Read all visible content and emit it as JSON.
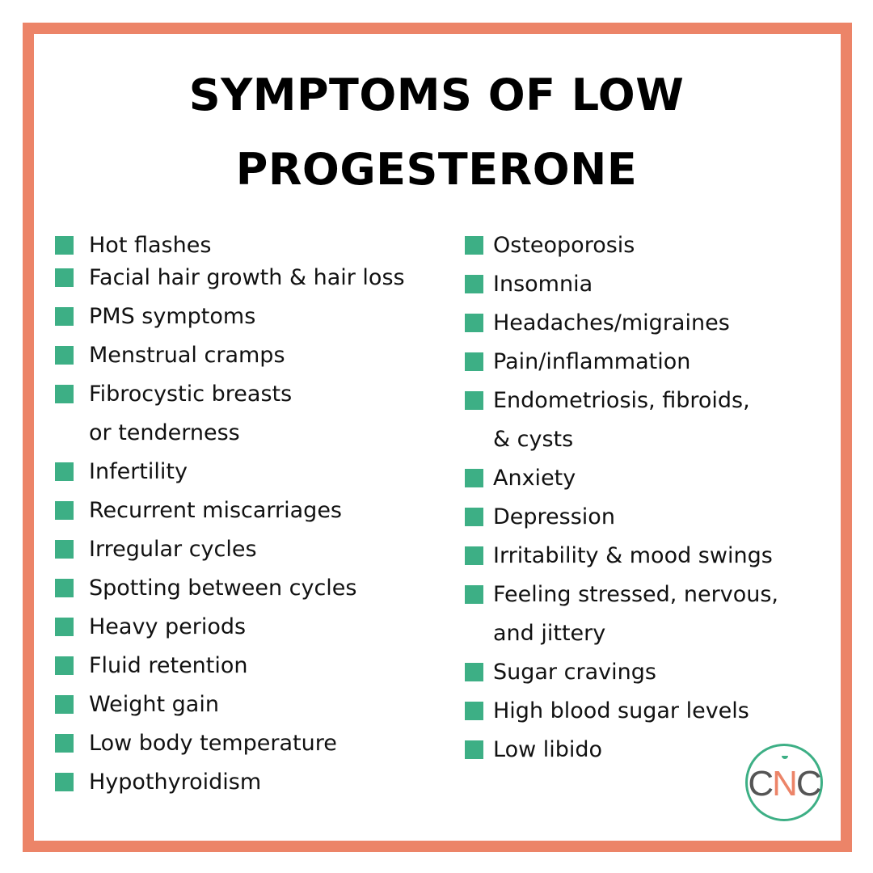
{
  "title": {
    "line1": "SYMPTOMS OF LOW",
    "line2": "PROGESTERONE"
  },
  "left_items": [
    {
      "lines": [
        "Hot flashes"
      ]
    },
    {
      "lines": [
        "Facial hair growth & hair loss"
      ]
    },
    {
      "lines": [
        "PMS symptoms"
      ]
    },
    {
      "lines": [
        "Menstrual cramps"
      ]
    },
    {
      "lines": [
        "Fibrocystic breasts",
        "or tenderness"
      ]
    },
    {
      "lines": [
        "Infertility"
      ]
    },
    {
      "lines": [
        "Recurrent miscarriages"
      ]
    },
    {
      "lines": [
        "Irregular cycles"
      ]
    },
    {
      "lines": [
        "Spotting between cycles"
      ]
    },
    {
      "lines": [
        "Heavy periods"
      ]
    },
    {
      "lines": [
        "Fluid retention"
      ]
    },
    {
      "lines": [
        "Weight gain"
      ]
    },
    {
      "lines": [
        "Low body temperature"
      ]
    },
    {
      "lines": [
        "Hypothyroidism"
      ]
    }
  ],
  "right_items": [
    {
      "lines": [
        "Osteoporosis"
      ]
    },
    {
      "lines": [
        "Insomnia"
      ]
    },
    {
      "lines": [
        "Headaches/migraines"
      ]
    },
    {
      "lines": [
        "Pain/inflammation"
      ]
    },
    {
      "lines": [
        "Endometriosis, fibroids,",
        "& cysts"
      ]
    },
    {
      "lines": [
        "Anxiety"
      ]
    },
    {
      "lines": [
        "Depression"
      ]
    },
    {
      "lines": [
        "Irritability & mood swings"
      ]
    },
    {
      "lines": [
        "Feeling stressed, nervous,",
        "and jittery"
      ]
    },
    {
      "lines": [
        "Sugar cravings"
      ]
    },
    {
      "lines": [
        "High blood sugar levels"
      ]
    },
    {
      "lines": [
        "Low libido"
      ]
    }
  ],
  "logo": {
    "text_c1": "C",
    "text_n": "N",
    "text_c2": "C"
  },
  "colors": {
    "border": "#ec8468",
    "bullet": "#3daf85",
    "logo_ring": "#3daf85"
  }
}
